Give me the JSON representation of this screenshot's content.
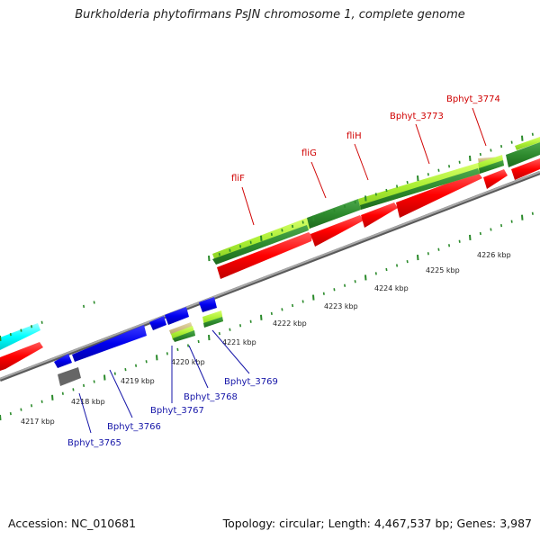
{
  "title": "Burkholderia phytofirmans PsJN chromosome 1, complete genome",
  "accession_text": "Accession: NC_010681",
  "summary_text": "Topology: circular; Length: 4,467,537 bp; Genes: 3,987",
  "colors": {
    "backbone": "#8c8c8c",
    "forward_gene": "#ff0000",
    "reverse_gene": "#0000ee",
    "cds_dark_green": "#2e8b2e",
    "cds_light_green": "#aaee33",
    "cyan_feature": "#00ffff",
    "grey_feature": "#666666",
    "tick": "#2a8a2a",
    "label_red": "#d00000",
    "label_blue": "#1515a8"
  },
  "scale_labels": [
    "4217 kbp",
    "4218 kbp",
    "4219 kbp",
    "4220 kbp",
    "4221 kbp",
    "4222 kbp",
    "4223 kbp",
    "4224 kbp",
    "4225 kbp",
    "4226 kbp"
  ],
  "forward_gene_labels": [
    "fliF",
    "fliG",
    "fliH",
    "Bphyt_3773",
    "Bphyt_3774"
  ],
  "reverse_gene_labels": [
    "Bphyt_3765",
    "Bphyt_3766",
    "Bphyt_3767",
    "Bphyt_3768",
    "Bphyt_3769"
  ]
}
